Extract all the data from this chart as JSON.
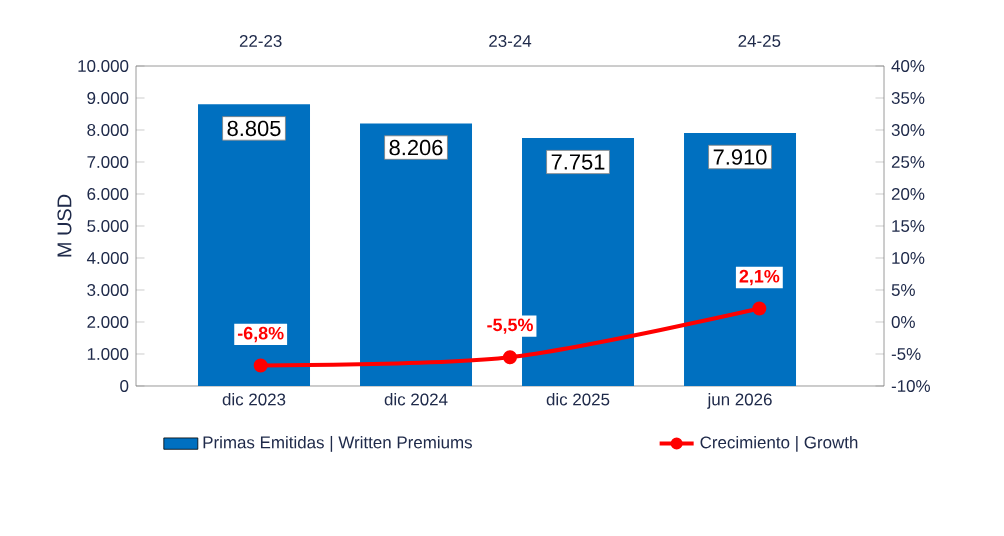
{
  "chart_data": [
    {
      "type": "bar",
      "ylabel": "M  USD",
      "categories": [
        "dic 2023",
        "dic 2024",
        "dic 2025",
        "jun 2026"
      ],
      "series": [
        {
          "name": "Primas Emitidas | Written Premiums",
          "color": "#0070c0",
          "values": [
            8805,
            8206,
            7751,
            7910
          ],
          "value_labels": [
            "8.805",
            "8.206",
            "7.751",
            "7.910"
          ]
        }
      ],
      "ylim": [
        0,
        10000
      ],
      "yticks": [
        {
          "value": 0,
          "label": "0"
        },
        {
          "value": 1000,
          "label": "1.000"
        },
        {
          "value": 2000,
          "label": "2.000"
        },
        {
          "value": 3000,
          "label": "3.000"
        },
        {
          "value": 4000,
          "label": "4.000"
        },
        {
          "value": 5000,
          "label": "5.000"
        },
        {
          "value": 6000,
          "label": "6.000"
        },
        {
          "value": 7000,
          "label": "7.000"
        },
        {
          "value": 8000,
          "label": "8.000"
        },
        {
          "value": 9000,
          "label": "9.000"
        },
        {
          "value": 10000,
          "label": "10.000"
        }
      ],
      "legend": "bottom"
    },
    {
      "type": "line",
      "categories": [
        "22-23",
        "23-24",
        "24-25"
      ],
      "series": [
        {
          "name": "Crecimiento | Growth",
          "color": "#ff0000",
          "values": [
            -6.8,
            -5.5,
            2.1
          ],
          "value_labels": [
            "-6,8%",
            "-5,5%",
            "2,1%"
          ]
        }
      ],
      "ylim": [
        -10,
        40
      ],
      "yticks": [
        {
          "value": -10,
          "label": "-10%"
        },
        {
          "value": -5,
          "label": "-5%"
        },
        {
          "value": 0,
          "label": "0%"
        },
        {
          "value": 5,
          "label": "5%"
        },
        {
          "value": 10,
          "label": "10%"
        },
        {
          "value": 15,
          "label": "15%"
        },
        {
          "value": 20,
          "label": "20%"
        },
        {
          "value": 25,
          "label": "25%"
        },
        {
          "value": 30,
          "label": "30%"
        },
        {
          "value": 35,
          "label": "35%"
        },
        {
          "value": 40,
          "label": "40%"
        }
      ],
      "marker": "circle",
      "legend": "bottom"
    }
  ]
}
